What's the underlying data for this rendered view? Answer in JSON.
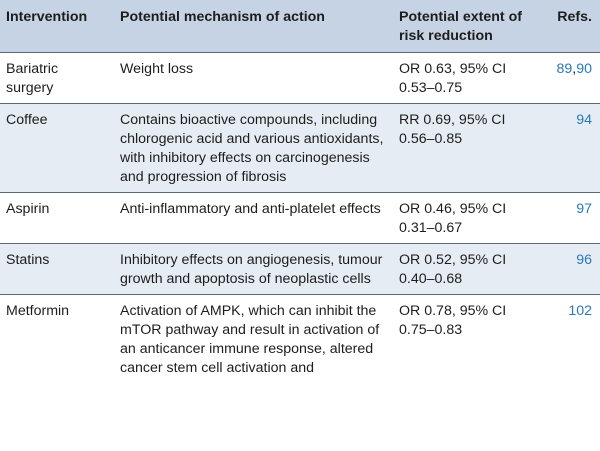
{
  "headers": {
    "intervention": "Intervention",
    "mechanism": "Potential mechanism of action",
    "extent": "Potential extent of risk reduction",
    "refs": "Refs."
  },
  "rows": [
    {
      "intervention": "Bariatric surgery",
      "mechanism": "Weight loss",
      "extent": "OR 0.63, 95% CI 0.53–0.75",
      "ref1": "89",
      "ref_sep": ",",
      "ref2": "90"
    },
    {
      "intervention": "Coffee",
      "mechanism": "Contains bioactive compounds, including chlorogenic acid and various antioxidants, with inhibitory effects on carcinogenesis and progression of fibrosis",
      "extent": "RR 0.69, 95% CI 0.56–0.85",
      "ref1": "94"
    },
    {
      "intervention": "Aspirin",
      "mechanism": "Anti-inflammatory and anti-platelet effects",
      "extent": "OR 0.46, 95% CI 0.31–0.67",
      "ref1": "97"
    },
    {
      "intervention": "Statins",
      "mechanism": "Inhibitory effects on angiogenesis, tumour growth and apoptosis of neoplastic cells",
      "extent": "OR 0.52, 95% CI 0.40–0.68",
      "ref1": "96"
    },
    {
      "intervention": "Metformin",
      "mechanism": "Activation of AMPK, which can inhibit the mTOR pathway and result in activation of an anticancer immune response, altered cancer stem cell activation and",
      "extent": "OR 0.78, 95% CI 0.75–0.83",
      "ref1": "102"
    }
  ],
  "colors": {
    "header_bg": "#c5d3e4",
    "shaded_row_bg": "#e6ecf3",
    "ref_link": "#2a7ab8"
  }
}
